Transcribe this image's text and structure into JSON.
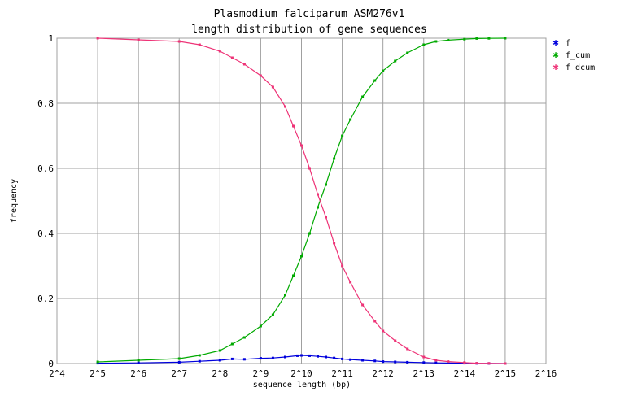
{
  "chart_data": {
    "type": "line",
    "title": "Plasmodium falciparum ASM276v1",
    "subtitle": "length distribution of gene sequences",
    "xlabel": "sequence length (bp)",
    "ylabel": "frequency",
    "x_scale": "log2",
    "xlim": [
      4,
      16
    ],
    "ylim": [
      0,
      1
    ],
    "x_ticks": [
      4,
      5,
      6,
      7,
      8,
      9,
      10,
      11,
      12,
      13,
      14,
      15,
      16
    ],
    "x_tick_labels": [
      "2^4",
      "2^5",
      "2^6",
      "2^7",
      "2^8",
      "2^9",
      "2^10",
      "2^11",
      "2^12",
      "2^13",
      "2^14",
      "2^15",
      "2^16"
    ],
    "y_ticks": [
      0,
      0.2,
      0.4,
      0.6,
      0.8,
      1
    ],
    "y_tick_labels": [
      "0",
      "0.2",
      "0.4",
      "0.6",
      "0.8",
      "1"
    ],
    "grid": true,
    "legend_position": "top-right",
    "series": [
      {
        "name": "f",
        "color": "#0000dd",
        "log2_x": [
          5.0,
          6.0,
          7.0,
          7.5,
          8.0,
          8.3,
          8.6,
          9.0,
          9.3,
          9.6,
          9.9,
          10.0,
          10.2,
          10.4,
          10.6,
          10.8,
          11.0,
          11.2,
          11.5,
          11.8,
          12.0,
          12.3,
          12.6,
          13.0,
          13.3,
          13.6,
          14.0,
          14.3,
          14.6,
          15.0
        ],
        "y": [
          0.001,
          0.002,
          0.004,
          0.007,
          0.01,
          0.014,
          0.013,
          0.016,
          0.017,
          0.02,
          0.024,
          0.025,
          0.024,
          0.022,
          0.02,
          0.017,
          0.014,
          0.012,
          0.01,
          0.008,
          0.006,
          0.005,
          0.004,
          0.003,
          0.002,
          0.0015,
          0.001,
          0.0006,
          0.0003,
          0.0001
        ]
      },
      {
        "name": "f_cum",
        "color": "#00aa00",
        "log2_x": [
          5.0,
          6.0,
          7.0,
          7.5,
          8.0,
          8.3,
          8.6,
          9.0,
          9.3,
          9.6,
          9.8,
          10.0,
          10.2,
          10.4,
          10.6,
          10.8,
          11.0,
          11.2,
          11.5,
          11.8,
          12.0,
          12.3,
          12.6,
          13.0,
          13.3,
          13.6,
          14.0,
          14.3,
          14.6,
          15.0
        ],
        "y": [
          0.005,
          0.01,
          0.015,
          0.025,
          0.04,
          0.06,
          0.08,
          0.115,
          0.15,
          0.21,
          0.27,
          0.33,
          0.4,
          0.48,
          0.55,
          0.63,
          0.7,
          0.75,
          0.82,
          0.87,
          0.9,
          0.93,
          0.955,
          0.98,
          0.99,
          0.994,
          0.997,
          0.999,
          0.9995,
          1.0
        ]
      },
      {
        "name": "f_dcum",
        "color": "#ee3377",
        "log2_x": [
          5.0,
          6.0,
          7.0,
          7.5,
          8.0,
          8.3,
          8.6,
          9.0,
          9.3,
          9.6,
          9.8,
          10.0,
          10.2,
          10.4,
          10.6,
          10.8,
          11.0,
          11.2,
          11.5,
          11.8,
          12.0,
          12.3,
          12.6,
          13.0,
          13.3,
          13.6,
          14.0,
          14.3,
          14.6,
          15.0
        ],
        "y": [
          1.0,
          0.995,
          0.99,
          0.98,
          0.96,
          0.94,
          0.92,
          0.885,
          0.85,
          0.79,
          0.73,
          0.67,
          0.6,
          0.52,
          0.45,
          0.37,
          0.3,
          0.25,
          0.18,
          0.13,
          0.1,
          0.07,
          0.045,
          0.02,
          0.01,
          0.006,
          0.003,
          0.001,
          0.0005,
          0.0
        ]
      }
    ]
  }
}
